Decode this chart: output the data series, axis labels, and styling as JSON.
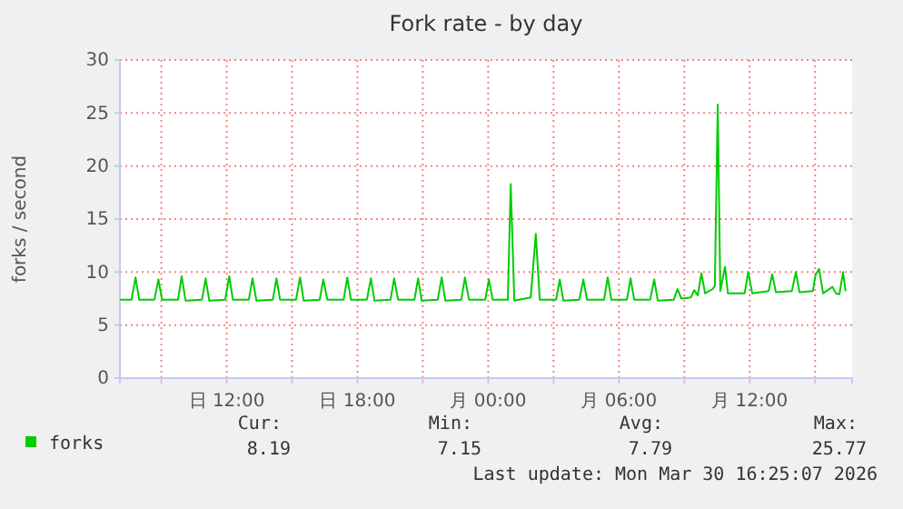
{
  "chart_data": {
    "type": "line",
    "title": "Fork rate - by day",
    "ylabel": "forks / second",
    "xlim": [
      "2026-03-29T07:06",
      "2026-03-30T16:42"
    ],
    "xticks": [
      {
        "value": "2026-03-29T09:00",
        "label": null
      },
      {
        "value": "2026-03-29T12:00",
        "label": "日 12:00"
      },
      {
        "value": "2026-03-29T15:00",
        "label": null
      },
      {
        "value": "2026-03-29T18:00",
        "label": "日 18:00"
      },
      {
        "value": "2026-03-29T21:00",
        "label": null
      },
      {
        "value": "2026-03-30T00:00",
        "label": "月 00:00"
      },
      {
        "value": "2026-03-30T03:00",
        "label": null
      },
      {
        "value": "2026-03-30T06:00",
        "label": "月 06:00"
      },
      {
        "value": "2026-03-30T09:00",
        "label": null
      },
      {
        "value": "2026-03-30T12:00",
        "label": "月 12:00"
      },
      {
        "value": "2026-03-30T15:00",
        "label": null
      }
    ],
    "ylim": [
      0,
      30
    ],
    "yticks": [
      0,
      5,
      10,
      15,
      20,
      25,
      30
    ],
    "grid": true,
    "legend": "bottom left",
    "line_style": "solid",
    "series": [
      {
        "name": "forks",
        "color": "#00cc00",
        "x": [
          "2026-03-29T07:06",
          "2026-03-29T07:38",
          "2026-03-29T07:49",
          "2026-03-29T07:59",
          "2026-03-29T08:41",
          "2026-03-29T08:52",
          "2026-03-29T09:02",
          "2026-03-29T09:46",
          "2026-03-29T09:56",
          "2026-03-29T10:07",
          "2026-03-29T10:52",
          "2026-03-29T11:02",
          "2026-03-29T11:12",
          "2026-03-29T11:56",
          "2026-03-29T12:07",
          "2026-03-29T12:17",
          "2026-03-29T13:01",
          "2026-03-29T13:11",
          "2026-03-29T13:22",
          "2026-03-29T14:07",
          "2026-03-29T14:17",
          "2026-03-29T14:27",
          "2026-03-29T15:11",
          "2026-03-29T15:22",
          "2026-03-29T15:32",
          "2026-03-29T16:16",
          "2026-03-29T16:26",
          "2026-03-29T16:37",
          "2026-03-29T17:22",
          "2026-03-29T17:32",
          "2026-03-29T17:42",
          "2026-03-29T18:26",
          "2026-03-29T18:37",
          "2026-03-29T18:47",
          "2026-03-29T19:31",
          "2026-03-29T19:41",
          "2026-03-29T19:52",
          "2026-03-29T20:37",
          "2026-03-29T20:47",
          "2026-03-29T20:57",
          "2026-03-29T21:41",
          "2026-03-29T21:52",
          "2026-03-29T22:02",
          "2026-03-29T22:46",
          "2026-03-29T22:56",
          "2026-03-29T23:07",
          "2026-03-29T23:52",
          "2026-03-30T00:02",
          "2026-03-30T00:12",
          "2026-03-30T00:54",
          "2026-03-30T01:02",
          "2026-03-30T01:12",
          "2026-03-30T01:57",
          "2026-03-30T02:11",
          "2026-03-30T02:22",
          "2026-03-30T03:07",
          "2026-03-30T03:17",
          "2026-03-30T03:27",
          "2026-03-30T04:11",
          "2026-03-30T04:22",
          "2026-03-30T04:32",
          "2026-03-30T05:19",
          "2026-03-30T05:29",
          "2026-03-30T05:39",
          "2026-03-30T06:22",
          "2026-03-30T06:32",
          "2026-03-30T06:42",
          "2026-03-30T07:26",
          "2026-03-30T07:37",
          "2026-03-30T07:47",
          "2026-03-30T08:31",
          "2026-03-30T08:41",
          "2026-03-30T08:52",
          "2026-03-30T09:18",
          "2026-03-30T09:27",
          "2026-03-30T09:37",
          "2026-03-30T09:47",
          "2026-03-30T09:57",
          "2026-03-30T10:18",
          "2026-03-30T10:24",
          "2026-03-30T10:32",
          "2026-03-30T10:39",
          "2026-03-30T10:52",
          "2026-03-30T11:00",
          "2026-03-30T11:46",
          "2026-03-30T11:56",
          "2026-03-30T12:07",
          "2026-03-30T12:52",
          "2026-03-30T13:02",
          "2026-03-30T13:12",
          "2026-03-30T13:56",
          "2026-03-30T14:07",
          "2026-03-30T14:17",
          "2026-03-30T14:54",
          "2026-03-30T15:01",
          "2026-03-30T15:11",
          "2026-03-30T15:22",
          "2026-03-30T15:48",
          "2026-03-30T15:57",
          "2026-03-30T16:07",
          "2026-03-30T16:17",
          "2026-03-30T16:24"
        ],
        "values": [
          7.4,
          7.4,
          9.5,
          7.4,
          7.4,
          9.3,
          7.4,
          7.4,
          9.6,
          7.3,
          7.4,
          9.4,
          7.3,
          7.4,
          9.6,
          7.4,
          7.4,
          9.4,
          7.3,
          7.4,
          9.4,
          7.4,
          7.4,
          9.5,
          7.3,
          7.4,
          9.3,
          7.4,
          7.4,
          9.5,
          7.4,
          7.4,
          9.4,
          7.3,
          7.4,
          9.4,
          7.4,
          7.4,
          9.4,
          7.3,
          7.4,
          9.5,
          7.3,
          7.4,
          9.5,
          7.4,
          7.4,
          9.3,
          7.4,
          7.4,
          18.3,
          7.3,
          7.6,
          13.6,
          7.4,
          7.4,
          9.3,
          7.3,
          7.4,
          9.3,
          7.4,
          7.4,
          9.5,
          7.4,
          7.4,
          9.4,
          7.4,
          7.4,
          9.3,
          7.3,
          7.4,
          8.4,
          7.5,
          7.6,
          8.3,
          7.8,
          9.9,
          8.0,
          8.4,
          8.7,
          25.8,
          8.2,
          10.5,
          8.0,
          8.0,
          10.0,
          8.0,
          8.2,
          9.8,
          8.1,
          8.2,
          10.0,
          8.1,
          8.2,
          9.7,
          10.3,
          8.0,
          8.6,
          8.0,
          7.9,
          10.0,
          8.2
        ]
      }
    ],
    "annotations": [
      "Cur:",
      "Min:",
      "Avg:",
      "Max:",
      "8.19",
      "7.15",
      "7.79",
      "25.77",
      "Last update: Mon Mar 30 16:25:07 2026"
    ]
  }
}
